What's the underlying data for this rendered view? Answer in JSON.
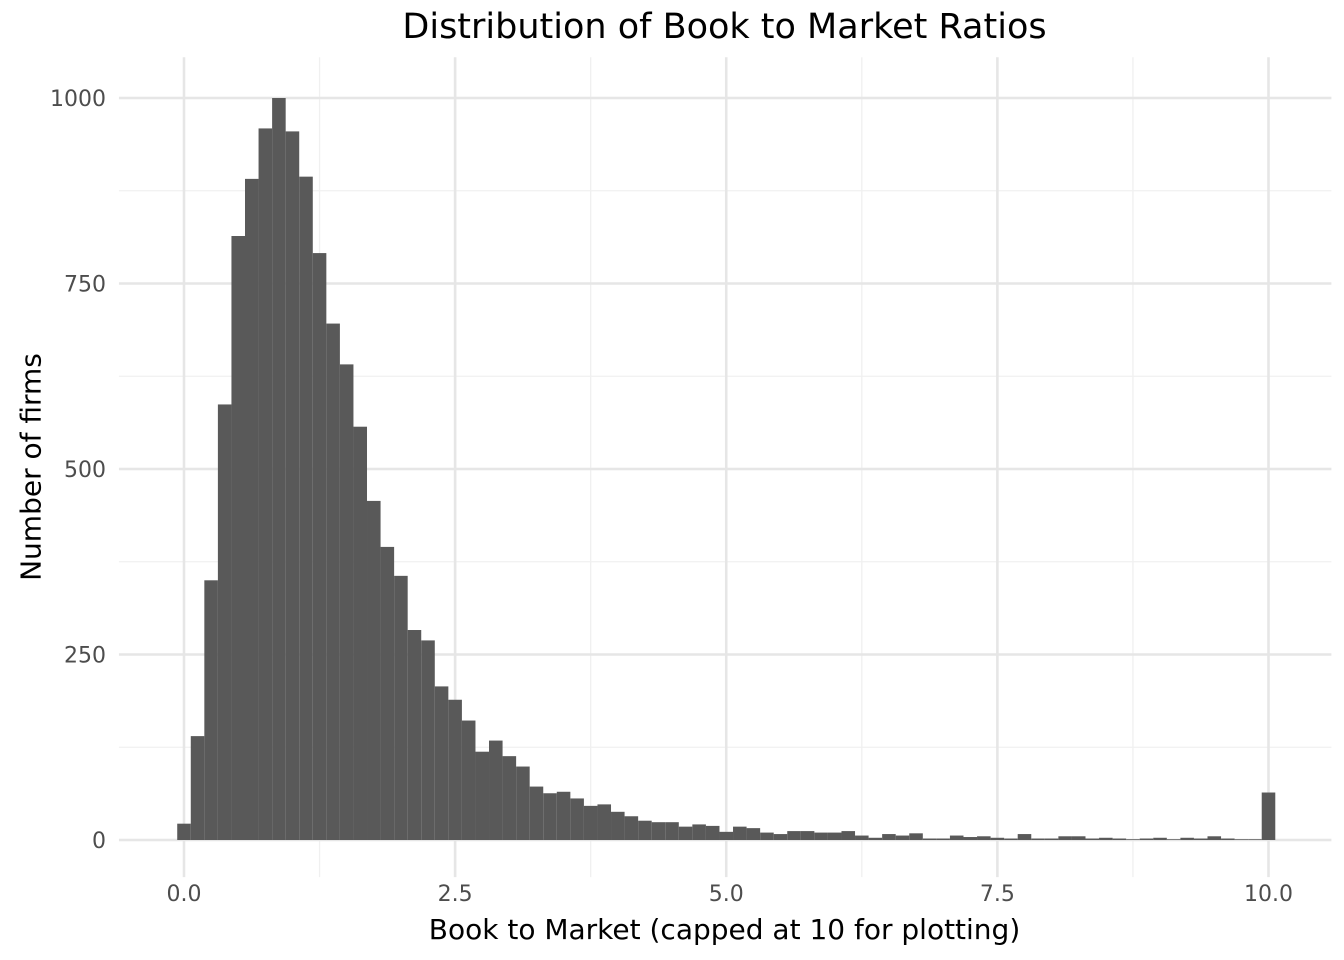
{
  "chart_data": {
    "type": "bar",
    "subtype": "histogram",
    "title": "Distribution of Book to Market Ratios",
    "xlabel": "Book to Market (capped at 10 for plotting)",
    "ylabel": "Number of firms",
    "bin_width": 0.125,
    "bin_centers": [
      0.0,
      0.125,
      0.25,
      0.375,
      0.5,
      0.625,
      0.75,
      0.875,
      1.0,
      1.125,
      1.25,
      1.375,
      1.5,
      1.625,
      1.75,
      1.875,
      2.0,
      2.125,
      2.25,
      2.375,
      2.5,
      2.625,
      2.75,
      2.875,
      3.0,
      3.125,
      3.25,
      3.375,
      3.5,
      3.625,
      3.75,
      3.875,
      4.0,
      4.125,
      4.25,
      4.375,
      4.5,
      4.625,
      4.75,
      4.875,
      5.0,
      5.125,
      5.25,
      5.375,
      5.5,
      5.625,
      5.75,
      5.875,
      6.0,
      6.125,
      6.25,
      6.375,
      6.5,
      6.625,
      6.75,
      6.875,
      7.0,
      7.125,
      7.25,
      7.375,
      7.5,
      7.625,
      7.75,
      7.875,
      8.0,
      8.125,
      8.25,
      8.375,
      8.5,
      8.625,
      8.75,
      8.875,
      9.0,
      9.125,
      9.25,
      9.375,
      9.5,
      9.625,
      9.75,
      9.875,
      10.0
    ],
    "counts": [
      22,
      140,
      350,
      587,
      814,
      891,
      959,
      1000,
      955,
      894,
      791,
      696,
      641,
      557,
      457,
      395,
      356,
      283,
      269,
      207,
      189,
      161,
      119,
      134,
      113,
      99,
      72,
      63,
      65,
      56,
      46,
      48,
      38,
      32,
      26,
      24,
      24,
      18,
      21,
      19,
      11,
      18,
      16,
      10,
      8,
      12,
      12,
      10,
      10,
      12,
      6,
      3,
      8,
      6,
      9,
      2,
      2,
      6,
      4,
      5,
      3,
      2,
      8,
      2,
      2,
      5,
      5,
      2,
      3,
      2,
      1,
      2,
      3,
      1,
      3,
      2,
      5,
      2,
      1,
      1,
      64
    ],
    "xlim": [
      -0.6,
      10.58
    ],
    "ylim": [
      -50,
      1055
    ],
    "x_ticks": {
      "values": [
        0,
        2.5,
        5,
        7.5,
        10
      ],
      "labels": [
        "0.0",
        "2.5",
        "5.0",
        "7.5",
        "10.0"
      ]
    },
    "y_ticks": {
      "values": [
        0,
        250,
        500,
        750,
        1000
      ],
      "labels": [
        "0",
        "250",
        "500",
        "750",
        "1000"
      ]
    },
    "x_minor_ticks": [
      1.25,
      3.75,
      6.25,
      8.75
    ],
    "y_minor_ticks": [
      125,
      375,
      625,
      875
    ],
    "grid": "major+minor",
    "legend": "none",
    "colors": {
      "bar": "#595959",
      "grid_major": "#e6e6e6",
      "grid_minor": "#f0f0f0",
      "tick_label": "#4d4d4d",
      "title": "#000000",
      "background": "#ffffff"
    }
  }
}
